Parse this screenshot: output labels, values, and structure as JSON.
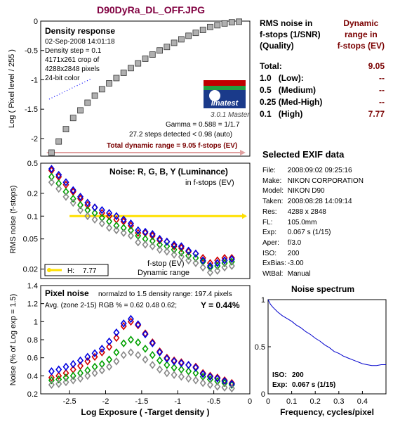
{
  "file_title": "D90DyRa_DL_OFF.JPG",
  "summary": {
    "col1_line1": "RMS noise in",
    "col1_line2": "f-stops (1/SNR)",
    "col1_line3": "(Quality)",
    "col2_line1": "Dynamic",
    "col2_line2": "range in",
    "col2_line3": "f-stops (EV)",
    "total_label": "Total:",
    "total_value": "9.05",
    "rows": [
      {
        "q": "1.0",
        "label": "(Low):",
        "value": "--"
      },
      {
        "q": "0.5",
        "label": "(Medium)",
        "value": "--"
      },
      {
        "q": "0.25",
        "label": "(Med-High)",
        "value": "--"
      },
      {
        "q": "0.1",
        "label": "(High)",
        "value": "7.77"
      }
    ]
  },
  "exif": {
    "title": "Selected EXIF data",
    "rows": [
      {
        "k": "File:",
        "v": "2008:09:02 09:25:16"
      },
      {
        "k": "Make:",
        "v": "NIKON CORPORATION"
      },
      {
        "k": "Model:",
        "v": "NIKON D90"
      },
      {
        "k": "Taken:",
        "v": "2008:08:28 14:09:14"
      },
      {
        "k": "Res:",
        "v": "4288 x 2848"
      },
      {
        "k": "FL:",
        "v": "105.0mm"
      },
      {
        "k": "Exp:",
        "v": "0.067 s  (1/15)"
      },
      {
        "k": "Aper:",
        "v": "f/3.0"
      },
      {
        "k": "ISO:",
        "v": "200"
      },
      {
        "k": "ExBias:",
        "v": "-3.00"
      },
      {
        "k": "WtBal:",
        "v": "Manual"
      }
    ]
  },
  "density": {
    "title": "Density response",
    "info": [
      "02-Sep-2008 14:01:18",
      "Density step = 0.1",
      "4171x261 crop of",
      "4288x2848 pixels",
      "24-bit color"
    ],
    "logo_text": "Imatest",
    "version": "3.0.1  Master",
    "gamma": "Gamma = 0.588 = 1/1.7",
    "steps": "27.2 steps detected < 0.98 (auto)",
    "total_dr": "Total dynamic range = 9.05 f-stops (EV)",
    "ylabel": "Log ( Pixel level / 255 )",
    "yticks": [
      "0",
      "-0.5",
      "-1",
      "-1.5",
      "-2"
    ],
    "colors": {
      "marker": "#b0b0b0",
      "dr_arrow": "#e0a0a0",
      "dots": "#0000ff"
    }
  },
  "noise": {
    "title": "Noise: R, G, B, Y (Luminance)",
    "subtitle": "in f-stops (EV)",
    "ylabel": "RMS noise (f-stops)",
    "yticks": [
      "0.5",
      "0.2",
      "0.1",
      "0.05",
      "0.02"
    ],
    "legend_h_label": "H:",
    "legend_h_value": "7.77",
    "note1": "f-stop (EV)",
    "note2": "Dynamic range",
    "colors": {
      "r": "#d00000",
      "g": "#00a000",
      "b": "#0000e0",
      "y": "#888888",
      "line": "#ffe000"
    }
  },
  "pixel_noise": {
    "title": "Pixel noise",
    "norm": "normalzd to 1.5 density range: 197.4 pixels",
    "avg": "Avg. (zone 2-15) RGB % = 0.62  0.48  0.62;",
    "y_value": "Y = 0.44%",
    "ylabel": "Noise (% of Log exp = 1.5)",
    "xlabel": "Log Exposure ( -Target density )",
    "yticks": [
      "1.4",
      "1.2",
      "1",
      "0.8",
      "0.6",
      "0.4",
      "0.2"
    ],
    "xticks": [
      "-2.5",
      "-2",
      "-1.5",
      "-1",
      "-0.5",
      "0"
    ]
  },
  "spectrum": {
    "title": "Noise spectrum",
    "xlabel": "Frequency, cycles/pixel",
    "yticks": [
      "1",
      "0.5",
      "0"
    ],
    "xticks": [
      "0",
      "0.1",
      "0.2",
      "0.3",
      "0.4"
    ],
    "iso_label": "ISO:",
    "iso_value": "200",
    "exp_label": "Exp:",
    "exp_value": "0.067 s  (1/15)"
  },
  "chart_data": [
    {
      "type": "scatter",
      "title": "Density response",
      "ylabel": "Log ( Pixel level / 255 )",
      "ylim": [
        -2.3,
        0
      ],
      "x": [
        -2.75,
        -2.65,
        -2.55,
        -2.45,
        -2.35,
        -2.25,
        -2.15,
        -2.05,
        -1.95,
        -1.85,
        -1.75,
        -1.65,
        -1.55,
        -1.45,
        -1.35,
        -1.25,
        -1.15,
        -1.05,
        -0.95,
        -0.85,
        -0.75,
        -0.65,
        -0.55,
        -0.45,
        -0.35,
        -0.25,
        -0.15
      ],
      "values": [
        -2.24,
        -2.05,
        -1.84,
        -1.65,
        -1.52,
        -1.39,
        -1.27,
        -1.16,
        -1.06,
        -0.97,
        -0.88,
        -0.8,
        -0.72,
        -0.64,
        -0.57,
        -0.5,
        -0.44,
        -0.37,
        -0.31,
        -0.25,
        -0.2,
        -0.15,
        -0.1,
        -0.07,
        -0.04,
        -0.02,
        -0.01
      ]
    },
    {
      "type": "scatter",
      "title": "Noise: R, G, B, Y (Luminance)",
      "ylabel": "RMS noise (f-stops)",
      "ylim": [
        0.015,
        0.5
      ],
      "log_y": true,
      "x": [
        -2.75,
        -2.65,
        -2.55,
        -2.45,
        -2.35,
        -2.25,
        -2.15,
        -2.05,
        -1.95,
        -1.85,
        -1.75,
        -1.65,
        -1.55,
        -1.45,
        -1.35,
        -1.25,
        -1.15,
        -1.05,
        -0.95,
        -0.85,
        -0.75,
        -0.65,
        -0.55,
        -0.45,
        -0.35,
        -0.25
      ],
      "series": [
        {
          "name": "R",
          "values": [
            0.4,
            0.33,
            0.26,
            0.21,
            0.17,
            0.14,
            0.13,
            0.11,
            0.1,
            0.09,
            0.085,
            0.075,
            0.06,
            0.06,
            0.055,
            0.048,
            0.046,
            0.04,
            0.038,
            0.034,
            0.032,
            0.028,
            0.024,
            0.026,
            0.028,
            0.028
          ]
        },
        {
          "name": "G",
          "values": [
            0.33,
            0.27,
            0.21,
            0.17,
            0.14,
            0.12,
            0.11,
            0.095,
            0.085,
            0.075,
            0.07,
            0.065,
            0.055,
            0.05,
            0.047,
            0.042,
            0.04,
            0.036,
            0.033,
            0.03,
            0.028,
            0.025,
            0.021,
            0.022,
            0.024,
            0.025
          ]
        },
        {
          "name": "B",
          "values": [
            0.42,
            0.35,
            0.28,
            0.22,
            0.18,
            0.15,
            0.13,
            0.12,
            0.11,
            0.1,
            0.09,
            0.08,
            0.065,
            0.062,
            0.058,
            0.05,
            0.046,
            0.042,
            0.04,
            0.035,
            0.032,
            0.026,
            0.022,
            0.024,
            0.026,
            0.027
          ]
        },
        {
          "name": "Y",
          "values": [
            0.28,
            0.23,
            0.18,
            0.15,
            0.12,
            0.1,
            0.09,
            0.08,
            0.07,
            0.065,
            0.06,
            0.055,
            0.045,
            0.042,
            0.04,
            0.036,
            0.034,
            0.031,
            0.029,
            0.026,
            0.024,
            0.021,
            0.018,
            0.019,
            0.021,
            0.022
          ]
        }
      ],
      "reference_line": {
        "y": 0.1,
        "x_range": [
          -2.5,
          0
        ]
      }
    },
    {
      "type": "scatter",
      "title": "Pixel noise",
      "xlabel": "Log Exposure ( -Target density )",
      "ylabel": "Noise (% of Log exp = 1.5)",
      "xlim": [
        -2.9,
        0
      ],
      "ylim": [
        0.2,
        1.4
      ],
      "x": [
        -2.75,
        -2.65,
        -2.55,
        -2.45,
        -2.35,
        -2.25,
        -2.15,
        -2.05,
        -1.95,
        -1.85,
        -1.75,
        -1.65,
        -1.55,
        -1.45,
        -1.35,
        -1.25,
        -1.15,
        -1.05,
        -0.95,
        -0.85,
        -0.75,
        -0.65,
        -0.55,
        -0.45,
        -0.35,
        -0.25
      ],
      "series": [
        {
          "name": "R",
          "values": [
            0.38,
            0.4,
            0.43,
            0.47,
            0.51,
            0.56,
            0.61,
            0.66,
            0.72,
            0.82,
            0.95,
            1.0,
            0.96,
            0.87,
            0.77,
            0.67,
            0.6,
            0.57,
            0.55,
            0.52,
            0.5,
            0.43,
            0.4,
            0.38,
            0.35,
            0.32
          ]
        },
        {
          "name": "G",
          "values": [
            0.35,
            0.36,
            0.38,
            0.4,
            0.43,
            0.46,
            0.5,
            0.53,
            0.58,
            0.66,
            0.76,
            0.8,
            0.77,
            0.7,
            0.63,
            0.57,
            0.52,
            0.49,
            0.47,
            0.45,
            0.43,
            0.39,
            0.36,
            0.34,
            0.32,
            0.3
          ]
        },
        {
          "name": "B",
          "values": [
            0.45,
            0.47,
            0.5,
            0.53,
            0.57,
            0.61,
            0.65,
            0.7,
            0.78,
            0.88,
            0.98,
            1.03,
            0.97,
            0.86,
            0.76,
            0.66,
            0.59,
            0.56,
            0.54,
            0.52,
            0.49,
            0.42,
            0.39,
            0.37,
            0.34,
            0.31
          ]
        },
        {
          "name": "Y",
          "values": [
            0.3,
            0.31,
            0.33,
            0.35,
            0.37,
            0.4,
            0.43,
            0.46,
            0.5,
            0.56,
            0.63,
            0.66,
            0.63,
            0.58,
            0.52,
            0.47,
            0.43,
            0.41,
            0.39,
            0.37,
            0.35,
            0.32,
            0.3,
            0.28,
            0.27,
            0.26
          ]
        }
      ]
    },
    {
      "type": "line",
      "title": "Noise spectrum",
      "xlabel": "Frequency, cycles/pixel",
      "xlim": [
        0,
        0.5
      ],
      "ylim": [
        0,
        1
      ],
      "x": [
        0,
        0.01,
        0.02,
        0.04,
        0.06,
        0.08,
        0.1,
        0.12,
        0.14,
        0.16,
        0.18,
        0.2,
        0.22,
        0.24,
        0.26,
        0.28,
        0.3,
        0.32,
        0.34,
        0.36,
        0.38,
        0.4,
        0.42,
        0.44,
        0.46,
        0.48,
        0.5
      ],
      "values": [
        1.0,
        0.95,
        0.92,
        0.87,
        0.83,
        0.8,
        0.77,
        0.73,
        0.7,
        0.66,
        0.63,
        0.59,
        0.56,
        0.52,
        0.49,
        0.45,
        0.43,
        0.4,
        0.38,
        0.36,
        0.34,
        0.32,
        0.31,
        0.3,
        0.3,
        0.31,
        0.31
      ]
    }
  ]
}
